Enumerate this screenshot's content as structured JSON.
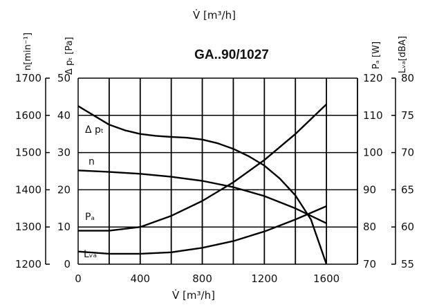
{
  "chart_data": {
    "type": "line",
    "title": "GA..90/1027",
    "top_label": "V̇ [m³/h]",
    "xlabel": "V̇ [m³/h]",
    "xlim": [
      0,
      1800
    ],
    "x_ticks": [
      "0",
      "400",
      "800",
      "1200",
      "1600"
    ],
    "x_tick_values": [
      0,
      400,
      800,
      1200,
      1600
    ],
    "grid": true,
    "axes": {
      "n": {
        "label": "n[min⁻¹]",
        "min": 1200,
        "max": 1700,
        "ticks": [
          "1200",
          "1300",
          "1400",
          "1500",
          "1600",
          "1700"
        ]
      },
      "dpt": {
        "label": "Δ pₜ [Pa]",
        "min": 0,
        "max": 50,
        "ticks": [
          "0",
          "10",
          "20",
          "30",
          "40",
          "50"
        ]
      },
      "pa": {
        "label": "Pₐ [W]",
        "min": 70,
        "max": 120,
        "ticks": [
          "70",
          "80",
          "90",
          "100",
          "110",
          "120"
        ]
      },
      "lwa": {
        "label": "Lᵥₐ[dBA]",
        "min": 55,
        "max": 80,
        "ticks": [
          "55",
          "60",
          "65",
          "70",
          "75",
          "80"
        ]
      }
    },
    "series": [
      {
        "name": "Δ pₜ",
        "axis": "dpt",
        "x": [
          0,
          100,
          200,
          300,
          400,
          500,
          600,
          700,
          800,
          900,
          1000,
          1100,
          1200,
          1300,
          1400,
          1500,
          1550,
          1600
        ],
        "y": [
          42.5,
          40,
          37.5,
          36,
          35,
          34.5,
          34.2,
          34,
          33.5,
          32.5,
          31,
          29,
          26.5,
          23,
          18.5,
          12,
          6,
          0
        ]
      },
      {
        "name": "n",
        "axis": "n",
        "x": [
          0,
          200,
          400,
          600,
          800,
          1000,
          1200,
          1400,
          1600
        ],
        "y": [
          1452,
          1448,
          1443,
          1435,
          1424,
          1407,
          1383,
          1350,
          1310
        ]
      },
      {
        "name": "Pₐ",
        "axis": "pa",
        "x": [
          0,
          200,
          400,
          600,
          800,
          1000,
          1200,
          1400,
          1600
        ],
        "y": [
          79,
          79,
          80,
          83,
          87,
          92,
          98,
          105,
          113
        ]
      },
      {
        "name": "Lᵥₐ",
        "axis": "lwa",
        "x": [
          0,
          200,
          400,
          600,
          800,
          1000,
          1200,
          1400,
          1600
        ],
        "y": [
          56.7,
          56.4,
          56.4,
          56.6,
          57.2,
          58.1,
          59.4,
          61,
          62.8
        ]
      }
    ]
  }
}
